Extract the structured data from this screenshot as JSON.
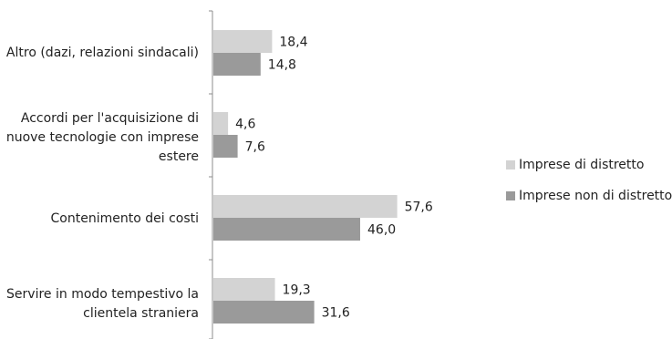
{
  "chart_data": {
    "type": "bar",
    "orientation": "horizontal",
    "categories": [
      "Altro (dazi, relazioni sindacali)",
      "Accordi per l'acquisizione di\nnuove tecnologie con imprese\nestere",
      "Contenimento dei costi",
      "Servire in modo tempestivo la\nclientela straniera"
    ],
    "series": [
      {
        "name": "Imprese di distretto",
        "color": "#d3d3d3",
        "values": [
          18.4,
          4.6,
          57.6,
          19.3
        ],
        "labels": [
          "18,4",
          "4,6",
          "57,6",
          "19,3"
        ]
      },
      {
        "name": "Imprese non di distretto",
        "color": "#9a9a9a",
        "values": [
          14.8,
          7.6,
          46.0,
          31.6
        ],
        "labels": [
          "14,8",
          "7,6",
          "46,0",
          "31,6"
        ]
      }
    ],
    "title": "",
    "xlabel": "",
    "ylabel": "",
    "xlim": [
      0,
      60
    ],
    "grid": false,
    "legend": "right"
  }
}
